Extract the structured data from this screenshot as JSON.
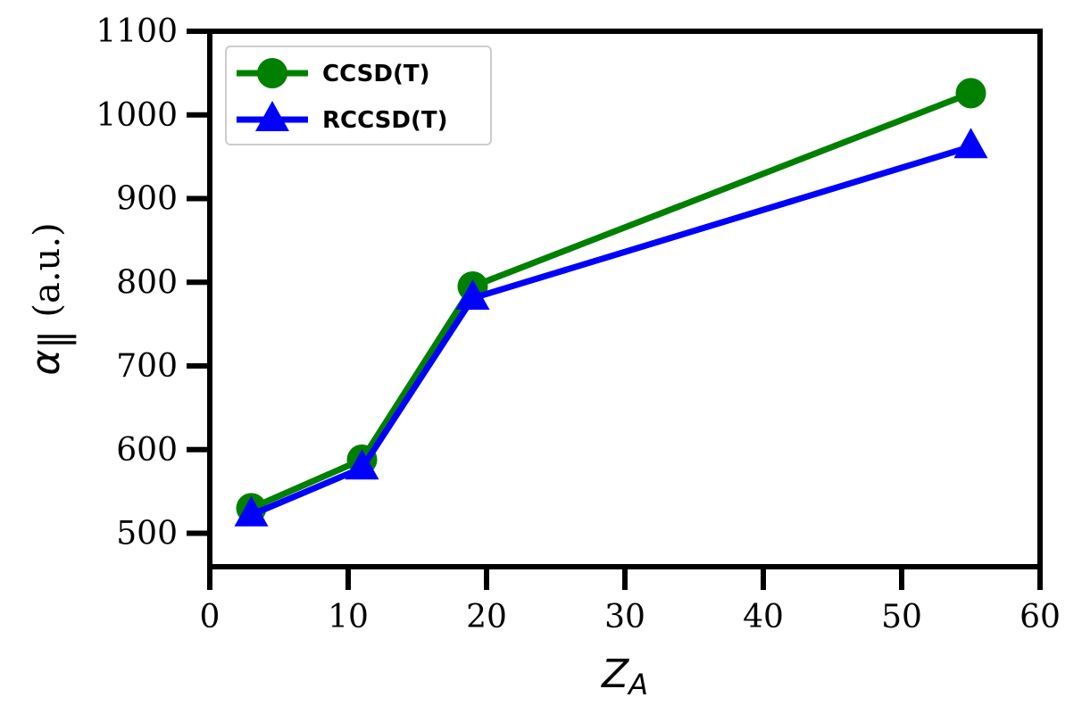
{
  "chart_data": {
    "type": "line",
    "x_label": {
      "symbol": "Z",
      "subscript": "A"
    },
    "y_label": {
      "symbol": "α",
      "subscript": "∥",
      "text": "(a.u.)"
    },
    "xlim": [
      0,
      60
    ],
    "ylim": [
      460,
      1100
    ],
    "x_ticks": [
      0,
      10,
      20,
      30,
      40,
      50,
      60
    ],
    "y_ticks": [
      500,
      600,
      700,
      800,
      900,
      1000,
      1100
    ],
    "grid": false,
    "legend_position": "top-left",
    "series": [
      {
        "name": "CCSD(T)",
        "color": "#008000",
        "marker": "circle",
        "x": [
          3,
          11,
          19,
          55
        ],
        "y": [
          530,
          588,
          795,
          1026
        ]
      },
      {
        "name": "RCCSD(T)",
        "color": "#0000ff",
        "marker": "triangle",
        "x": [
          3,
          11,
          19,
          55
        ],
        "y": [
          522,
          578,
          781,
          962
        ]
      }
    ]
  }
}
